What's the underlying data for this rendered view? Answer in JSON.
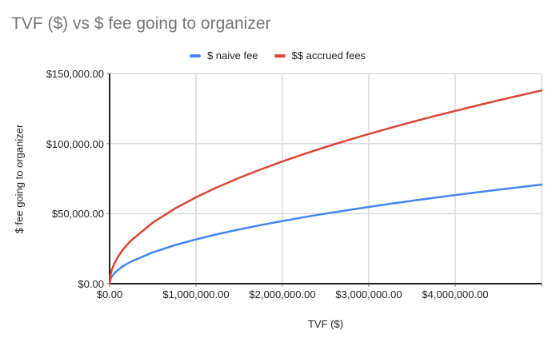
{
  "chart_data": {
    "type": "line",
    "title": "TVF ($) vs $ fee going to organizer",
    "xlabel": "TVF ($)",
    "ylabel": "$ fee going to organizer",
    "xlim": [
      0,
      5000000
    ],
    "ylim": [
      0,
      150000
    ],
    "grid": true,
    "legend_position": "top-center",
    "y_ticks": [
      {
        "value": 0,
        "label": "$0.00"
      },
      {
        "value": 50000,
        "label": "$50,000.00"
      },
      {
        "value": 100000,
        "label": "$100,000.00"
      },
      {
        "value": 150000,
        "label": "$150,000.00"
      }
    ],
    "x_ticks": [
      {
        "value": 0,
        "label": "$0.00"
      },
      {
        "value": 1000000,
        "label": "$1,000,000.00"
      },
      {
        "value": 2000000,
        "label": "$2,000,000.00"
      },
      {
        "value": 3000000,
        "label": "$3,000,000.00"
      },
      {
        "value": 4000000,
        "label": "$4,000,000.00"
      }
    ],
    "x_gridlines": [
      1000000,
      2000000,
      3000000,
      4000000,
      5000000
    ],
    "x": [
      0,
      10000,
      25000,
      50000,
      100000,
      150000,
      200000,
      250000,
      500000,
      750000,
      1000000,
      1250000,
      1500000,
      1750000,
      2000000,
      2250000,
      2500000,
      2750000,
      3000000,
      3250000,
      3500000,
      3750000,
      4000000,
      4250000,
      4500000,
      4750000,
      5000000
    ],
    "series": [
      {
        "key": "naive-fee",
        "name": "$ naive fee",
        "color": "#4285F4",
        "values": [
          0,
          3162,
          5000,
          7071,
          10000,
          12247,
          14142,
          15811,
          22361,
          27386,
          31623,
          35355,
          38730,
          41833,
          44721,
          47434,
          50000,
          52440,
          54772,
          57009,
          59161,
          61237,
          63246,
          65192,
          67082,
          68920,
          70711
        ]
      },
      {
        "key": "accrued-fees",
        "name": "$$ accrued fees",
        "color": "#DB4437",
        "values": [
          0,
          6166,
          9750,
          13789,
          19500,
          23882,
          27577,
          30832,
          43604,
          53403,
          61665,
          68942,
          75524,
          81574,
          87206,
          92496,
          97500,
          102258,
          106805,
          111168,
          115364,
          119412,
          123330,
          127124,
          130810,
          134394,
          137886
        ]
      }
    ],
    "colors": {
      "background": "#ffffff",
      "title_text": "#757575",
      "axis_line": "#212121",
      "gridline": "#d9d9d9",
      "tick_mark": "#b0b0b0",
      "label_text": "#222222"
    }
  }
}
